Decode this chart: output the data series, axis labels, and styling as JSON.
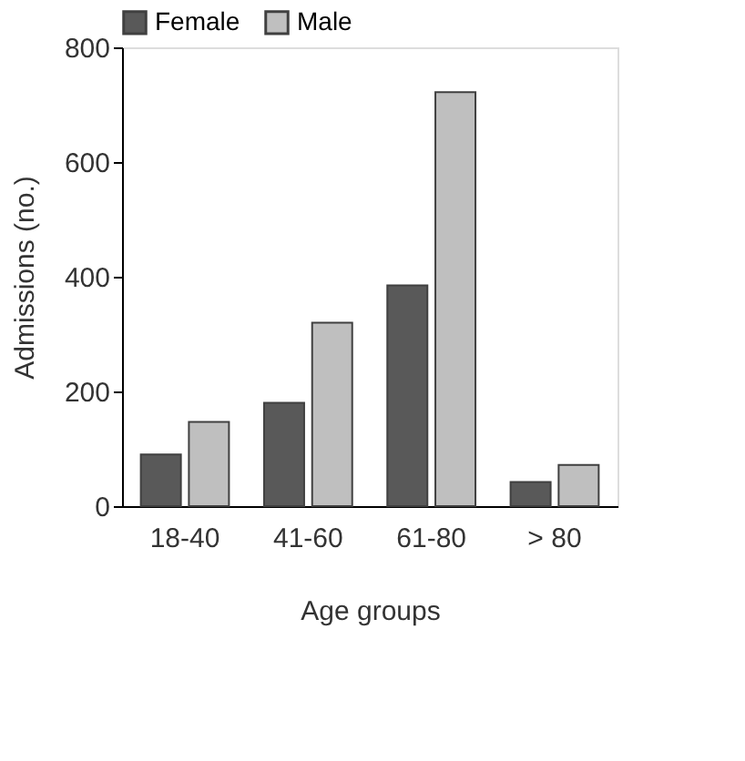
{
  "chart_data": {
    "type": "bar",
    "xlabel": "Age groups",
    "ylabel": "Admissions (no.)",
    "categories": [
      "18-40",
      "41-60",
      "61-80",
      "> 80"
    ],
    "series": [
      {
        "name": "Female",
        "color": "#595959",
        "values": [
          90,
          180,
          385,
          42
        ]
      },
      {
        "name": "Male",
        "color": "#bfbfbf",
        "values": [
          147,
          320,
          722,
          72
        ]
      }
    ],
    "ylim": [
      0,
      800
    ],
    "yticks": [
      0,
      200,
      400,
      600,
      800
    ],
    "grid": false,
    "legend": "top"
  }
}
